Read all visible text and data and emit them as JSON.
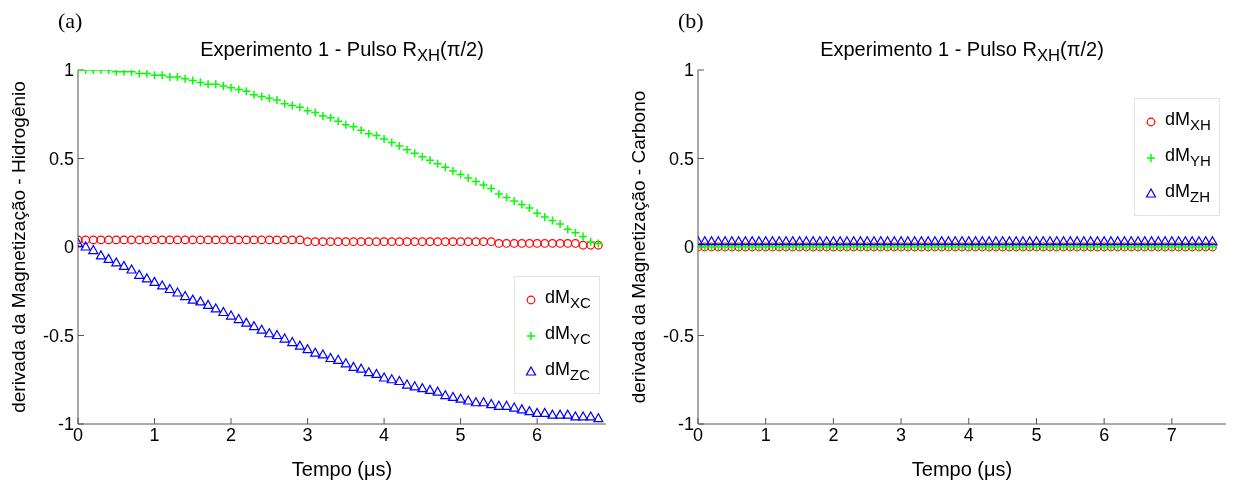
{
  "chart_data": [
    {
      "type": "scatter",
      "title": "Experimento 1 - Pulso R$_{XH}$(π/2)",
      "xlabel": "Tempo (μs)",
      "ylabel": "derivada da Magnetização - Hidrogênio",
      "annotations": [
        "(a)"
      ],
      "x": [
        0,
        0.1,
        0.2,
        0.3,
        0.4,
        0.5,
        0.6,
        0.7,
        0.8,
        0.9,
        1,
        1.1,
        1.2,
        1.3,
        1.4,
        1.5,
        1.6,
        1.7,
        1.8,
        1.9,
        2,
        2.1,
        2.2,
        2.3,
        2.4,
        2.5,
        2.6,
        2.7,
        2.8,
        2.9,
        3,
        3.1,
        3.2,
        3.3,
        3.4,
        3.5,
        3.6,
        3.7,
        3.8,
        3.9,
        4,
        4.1,
        4.2,
        4.3,
        4.4,
        4.5,
        4.6,
        4.7,
        4.8,
        4.9,
        5,
        5.1,
        5.2,
        5.3,
        5.4,
        5.5,
        5.6,
        5.7,
        5.8,
        5.9,
        6,
        6.1,
        6.2,
        6.3,
        6.4,
        6.5,
        6.6,
        6.7,
        6.8
      ],
      "xlim": [
        0,
        6.9
      ],
      "xticks": [
        0,
        1,
        2,
        3,
        4,
        5,
        6
      ],
      "ylim": [
        -1,
        1
      ],
      "yticks": [
        -1,
        -0.5,
        0,
        0.5,
        1
      ],
      "grid": false,
      "legend": "bottom right",
      "series": [
        {
          "name": "dM$_{XC}$",
          "color": "#ff0000",
          "marker": "circle",
          "values": [
            0.04,
            0.04,
            0.04,
            0.04,
            0.04,
            0.04,
            0.04,
            0.04,
            0.04,
            0.04,
            0.04,
            0.04,
            0.04,
            0.04,
            0.04,
            0.04,
            0.04,
            0.04,
            0.04,
            0.04,
            0.04,
            0.04,
            0.04,
            0.04,
            0.04,
            0.04,
            0.04,
            0.04,
            0.04,
            0.04,
            0.03,
            0.03,
            0.03,
            0.03,
            0.03,
            0.03,
            0.03,
            0.03,
            0.03,
            0.03,
            0.03,
            0.03,
            0.03,
            0.03,
            0.03,
            0.03,
            0.03,
            0.03,
            0.03,
            0.03,
            0.03,
            0.03,
            0.03,
            0.03,
            0.03,
            0.02,
            0.02,
            0.02,
            0.02,
            0.02,
            0.02,
            0.02,
            0.02,
            0.02,
            0.02,
            0.02,
            0.01,
            0.01,
            0.01
          ]
        },
        {
          "name": "dM$_{YC}$",
          "color": "#00ff00",
          "marker": "cross",
          "values": [
            1,
            1,
            1,
            1,
            1,
            0.99,
            0.99,
            0.99,
            0.98,
            0.98,
            0.97,
            0.97,
            0.96,
            0.96,
            0.95,
            0.94,
            0.93,
            0.92,
            0.92,
            0.91,
            0.9,
            0.89,
            0.88,
            0.86,
            0.85,
            0.84,
            0.83,
            0.81,
            0.8,
            0.79,
            0.77,
            0.76,
            0.74,
            0.73,
            0.71,
            0.69,
            0.68,
            0.66,
            0.64,
            0.63,
            0.61,
            0.59,
            0.57,
            0.55,
            0.53,
            0.51,
            0.49,
            0.47,
            0.45,
            0.43,
            0.41,
            0.39,
            0.37,
            0.35,
            0.33,
            0.3,
            0.28,
            0.26,
            0.24,
            0.22,
            0.19,
            0.17,
            0.15,
            0.13,
            0.1,
            0.08,
            0.06,
            0.03,
            0.02
          ]
        },
        {
          "name": "dM$_{ZC}$",
          "color": "#0000ff",
          "marker": "triangle",
          "values": [
            0.02,
            0,
            -0.02,
            -0.05,
            -0.07,
            -0.09,
            -0.11,
            -0.13,
            -0.16,
            -0.18,
            -0.2,
            -0.22,
            -0.24,
            -0.26,
            -0.28,
            -0.3,
            -0.31,
            -0.33,
            -0.35,
            -0.37,
            -0.39,
            -0.41,
            -0.43,
            -0.45,
            -0.47,
            -0.49,
            -0.5,
            -0.52,
            -0.54,
            -0.56,
            -0.58,
            -0.6,
            -0.61,
            -0.63,
            -0.64,
            -0.66,
            -0.68,
            -0.69,
            -0.71,
            -0.72,
            -0.74,
            -0.75,
            -0.76,
            -0.78,
            -0.79,
            -0.8,
            -0.81,
            -0.82,
            -0.84,
            -0.85,
            -0.86,
            -0.87,
            -0.88,
            -0.88,
            -0.89,
            -0.9,
            -0.9,
            -0.91,
            -0.92,
            -0.93,
            -0.94,
            -0.94,
            -0.95,
            -0.95,
            -0.95,
            -0.96,
            -0.96,
            -0.96,
            -0.97
          ]
        }
      ]
    },
    {
      "type": "scatter",
      "title": "Experimento 1 - Pulso R$_{XH}$(π/2)",
      "xlabel": "Tempo (μs)",
      "ylabel": "derivada da Magnetização - Carbono",
      "annotations": [
        "(b)"
      ],
      "x": [
        0,
        0.1,
        0.2,
        0.3,
        0.4,
        0.5,
        0.6,
        0.7,
        0.8,
        0.9,
        1,
        1.1,
        1.2,
        1.3,
        1.4,
        1.5,
        1.6,
        1.7,
        1.8,
        1.9,
        2,
        2.1,
        2.2,
        2.3,
        2.4,
        2.5,
        2.6,
        2.7,
        2.8,
        2.9,
        3,
        3.1,
        3.2,
        3.3,
        3.4,
        3.5,
        3.6,
        3.7,
        3.8,
        3.9,
        4,
        4.1,
        4.2,
        4.3,
        4.4,
        4.5,
        4.6,
        4.7,
        4.8,
        4.9,
        5,
        5.1,
        5.2,
        5.3,
        5.4,
        5.5,
        5.6,
        5.7,
        5.8,
        5.9,
        6,
        6.1,
        6.2,
        6.3,
        6.4,
        6.5,
        6.6,
        6.7,
        6.8,
        6.9,
        7,
        7.1,
        7.2,
        7.3,
        7.4,
        7.5,
        7.6
      ],
      "xlim": [
        0,
        7.8
      ],
      "xticks": [
        0,
        1,
        2,
        3,
        4,
        5,
        6,
        7
      ],
      "ylim": [
        -1,
        1
      ],
      "yticks": [
        -1,
        -0.5,
        0,
        0.5,
        1
      ],
      "grid": false,
      "legend": "top right",
      "series": [
        {
          "name": "dM$_{XH}$",
          "color": "#ff0000",
          "marker": "circle",
          "values": [
            0,
            0,
            0,
            0,
            0,
            0,
            0,
            0,
            0,
            0,
            0,
            0,
            0,
            0,
            0,
            0,
            0,
            0,
            0,
            0,
            0,
            0,
            0,
            0,
            0,
            0,
            0,
            0,
            0,
            0,
            0,
            0,
            0,
            0,
            0,
            0,
            0,
            0,
            0,
            0,
            0,
            0,
            0,
            0,
            0,
            0,
            0,
            0,
            0,
            0,
            0,
            0,
            0,
            0,
            0,
            0,
            0,
            0,
            0,
            0,
            0,
            0,
            0,
            0,
            0,
            0,
            0,
            0,
            0,
            0,
            0,
            0,
            0,
            0,
            0,
            0,
            0
          ]
        },
        {
          "name": "dM$_{YH}$",
          "color": "#00ff00",
          "marker": "cross",
          "values": [
            0,
            0,
            0,
            0,
            0,
            0,
            0,
            0,
            0,
            0,
            0,
            0,
            0,
            0,
            0,
            0,
            0,
            0,
            0,
            0,
            0,
            0,
            0,
            0,
            0,
            0,
            0,
            0,
            0,
            0,
            0,
            0,
            0,
            0,
            0,
            0,
            0,
            0,
            0,
            0,
            0,
            0,
            0,
            0,
            0,
            0,
            0,
            0,
            0,
            0,
            0,
            0,
            0,
            0,
            0,
            0,
            0,
            0,
            0,
            0,
            0,
            0,
            0,
            0,
            0,
            0,
            0,
            0,
            0,
            0,
            0,
            0,
            0,
            0,
            0,
            0,
            0
          ]
        },
        {
          "name": "dM$_{ZH}$",
          "color": "#0000ff",
          "marker": "triangle",
          "values": [
            0.03,
            0.03,
            0.03,
            0.03,
            0.03,
            0.03,
            0.03,
            0.03,
            0.03,
            0.03,
            0.03,
            0.03,
            0.03,
            0.03,
            0.03,
            0.03,
            0.03,
            0.03,
            0.03,
            0.03,
            0.03,
            0.03,
            0.03,
            0.03,
            0.03,
            0.03,
            0.03,
            0.03,
            0.03,
            0.03,
            0.03,
            0.03,
            0.03,
            0.03,
            0.03,
            0.03,
            0.03,
            0.03,
            0.03,
            0.03,
            0.03,
            0.03,
            0.03,
            0.03,
            0.03,
            0.03,
            0.03,
            0.03,
            0.03,
            0.03,
            0.03,
            0.03,
            0.03,
            0.03,
            0.03,
            0.03,
            0.03,
            0.03,
            0.03,
            0.03,
            0.03,
            0.03,
            0.03,
            0.03,
            0.03,
            0.03,
            0.03,
            0.03,
            0.03,
            0.03,
            0.03,
            0.03,
            0.03,
            0.03,
            0.03,
            0.03,
            0.03
          ]
        }
      ]
    }
  ]
}
